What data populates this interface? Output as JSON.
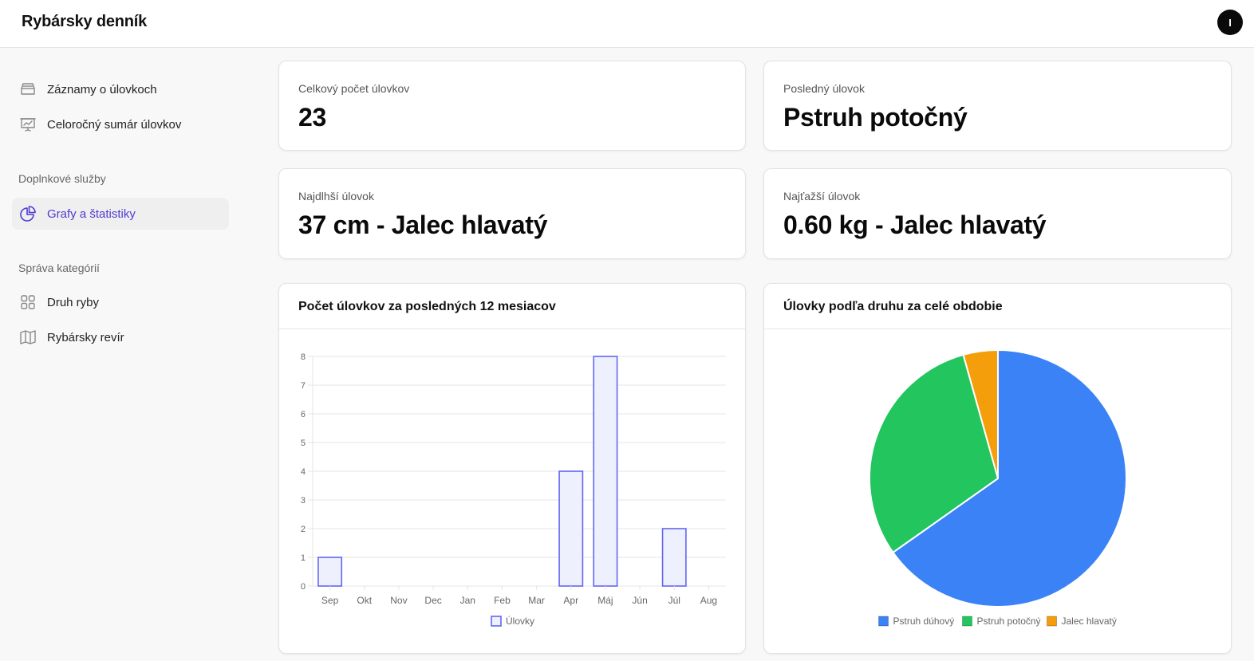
{
  "app": {
    "title": "Rybársky denník",
    "user_initial": "I"
  },
  "sidebar": {
    "items": [
      {
        "label": "Záznamy o úlovkoch",
        "icon": "inbox-icon"
      },
      {
        "label": "Celoročný sumár úlovkov",
        "icon": "presentation-chart-icon"
      }
    ],
    "section_services": "Doplnkové služby",
    "services_items": [
      {
        "label": "Grafy a štatistiky",
        "icon": "pie-chart-icon",
        "active": true
      }
    ],
    "section_categories": "Správa kategórií",
    "category_items": [
      {
        "label": "Druh ryby",
        "icon": "grid-icon"
      },
      {
        "label": "Rybársky revír",
        "icon": "map-icon"
      }
    ]
  },
  "stats": {
    "total": {
      "label": "Celkový počet úlovkov",
      "value": "23"
    },
    "last": {
      "label": "Posledný úlovok",
      "value": "Pstruh potočný"
    },
    "longest": {
      "label": "Najdlhší úlovok",
      "value": "37 cm - Jalec hlavatý"
    },
    "heaviest": {
      "label": "Najťažší úlovok",
      "value": "0.60 kg - Jalec hlavatý"
    }
  },
  "colors": {
    "accent": "#4f3bd1",
    "bar_stroke": "#6366f1",
    "bar_fill": "#eef0fd",
    "blue": "#3b82f6",
    "green": "#22c55e",
    "orange": "#f59e0b"
  },
  "chart_data": [
    {
      "type": "bar",
      "title": "Počet úlovkov za posledných 12 mesiacov",
      "categories": [
        "Sep",
        "Okt",
        "Nov",
        "Dec",
        "Jan",
        "Feb",
        "Mar",
        "Apr",
        "Máj",
        "Jún",
        "Júl",
        "Aug"
      ],
      "series": [
        {
          "name": "Úlovky",
          "values": [
            1,
            0,
            0,
            0,
            0,
            0,
            0,
            4,
            8,
            0,
            2,
            0
          ]
        }
      ],
      "yticks": [
        0,
        1,
        2,
        3,
        4,
        5,
        6,
        7,
        8
      ],
      "ylim": [
        0,
        8
      ],
      "grid": true,
      "legend": "bottom"
    },
    {
      "type": "pie",
      "title": "Úlovky podľa druhu za celé obdobie",
      "labels": [
        "Pstruh dúhový",
        "Pstruh potočný",
        "Jalec hlavatý"
      ],
      "values": [
        15,
        7,
        1
      ],
      "colors": [
        "#3b82f6",
        "#22c55e",
        "#f59e0b"
      ],
      "legend": "bottom"
    }
  ]
}
